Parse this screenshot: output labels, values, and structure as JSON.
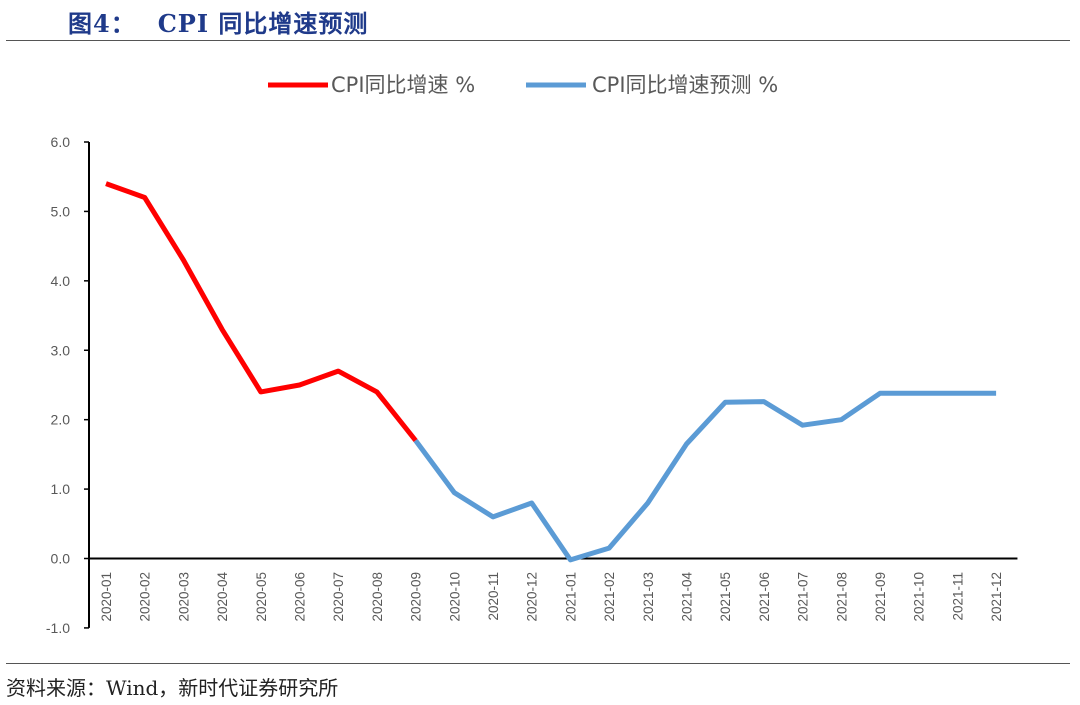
{
  "figure": {
    "label": "图4：",
    "title": "CPI 同比增速预测",
    "source": "资料来源：Wind，新时代证券研究所"
  },
  "colors": {
    "actual": "#ff0000",
    "forecast": "#5b9bd5",
    "axis": "#000000",
    "tick_text": "#595959",
    "legend_text": "#595959"
  },
  "chart_data": {
    "type": "line",
    "categories": [
      "2020-01",
      "2020-02",
      "2020-03",
      "2020-04",
      "2020-05",
      "2020-06",
      "2020-07",
      "2020-08",
      "2020-09",
      "2020-10",
      "2020-11",
      "2020-12",
      "2021-01",
      "2021-02",
      "2021-03",
      "2021-04",
      "2021-05",
      "2021-06",
      "2021-07",
      "2021-08",
      "2021-09",
      "2021-10",
      "2021-11",
      "2021-12"
    ],
    "series": [
      {
        "name": "CPI同比增速 %",
        "values": [
          5.4,
          5.2,
          4.3,
          3.3,
          2.4,
          2.5,
          2.7,
          2.4,
          1.7,
          null,
          null,
          null,
          null,
          null,
          null,
          null,
          null,
          null,
          null,
          null,
          null,
          null,
          null,
          null
        ]
      },
      {
        "name": "CPI同比增速预测 %",
        "values": [
          null,
          null,
          null,
          null,
          null,
          null,
          null,
          null,
          1.7,
          0.95,
          0.6,
          0.8,
          -0.02,
          0.15,
          0.8,
          1.65,
          2.25,
          2.26,
          1.92,
          2.0,
          2.38,
          2.38,
          2.38,
          2.38
        ]
      }
    ],
    "y_ticks": [
      "6.0",
      "5.0",
      "4.0",
      "3.0",
      "2.0",
      "1.0",
      "0.0",
      "-1.0"
    ],
    "ylim": [
      -1,
      6
    ],
    "legend_position": "top",
    "grid": false,
    "xlabel": "",
    "ylabel": ""
  }
}
